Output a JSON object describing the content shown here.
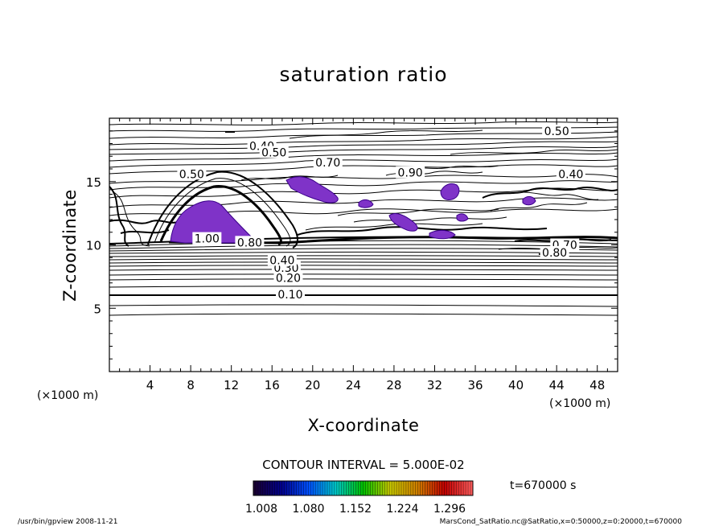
{
  "chart_data": {
    "type": "contour",
    "title": "saturation ratio",
    "xlabel": "X-coordinate",
    "ylabel": "Z-coordinate",
    "x_unit": "(×1000 m)",
    "xlim": [
      0,
      50
    ],
    "ylim": [
      0,
      20
    ],
    "x_ticks": [
      4,
      8,
      12,
      16,
      20,
      24,
      28,
      32,
      36,
      40,
      44,
      48
    ],
    "y_ticks": [
      5,
      10,
      15
    ],
    "contour_labels": [
      {
        "text": "0.10",
        "x": 17.8,
        "z": 6.1
      },
      {
        "text": "0.20",
        "x": 17.6,
        "z": 7.4
      },
      {
        "text": "0.30",
        "x": 17.4,
        "z": 8.2
      },
      {
        "text": "0.40",
        "x": 17.0,
        "z": 8.8
      },
      {
        "text": "1.00",
        "x": 9.6,
        "z": 10.5
      },
      {
        "text": "0.80",
        "x": 13.8,
        "z": 10.2
      },
      {
        "text": "0.40",
        "x": 15.0,
        "z": 17.8
      },
      {
        "text": "0.50",
        "x": 16.2,
        "z": 17.3
      },
      {
        "text": "0.70",
        "x": 21.5,
        "z": 16.5
      },
      {
        "text": "0.50",
        "x": 8.1,
        "z": 15.6
      },
      {
        "text": "0.90",
        "x": 29.6,
        "z": 15.7
      },
      {
        "text": "0.50",
        "x": 44.0,
        "z": 19.0
      },
      {
        "text": "0.40",
        "x": 45.4,
        "z": 15.6
      },
      {
        "text": "0.70",
        "x": 44.8,
        "z": 10.0
      },
      {
        "text": "0.80",
        "x": 43.8,
        "z": 9.4
      }
    ],
    "shaded_regions_note": "saturation ratio > 1",
    "contour_interval_label": "CONTOUR INTERVAL = 5.000E-02",
    "colorbar": {
      "ticks": [
        "1.008",
        "1.080",
        "1.152",
        "1.224",
        "1.296"
      ],
      "colors": [
        "#1a0033",
        "#00008b",
        "#0050ff",
        "#00c8c8",
        "#00c000",
        "#c8c800",
        "#d08000",
        "#c00000",
        "#ff5a5a"
      ]
    },
    "time_label": "t=670000 s"
  },
  "footer": {
    "left": "/usr/bin/gpview   2008-11-21",
    "right": "MarsCond_SatRatio.nc@SatRatio,x=0:50000,z=0:20000,t=670000"
  }
}
